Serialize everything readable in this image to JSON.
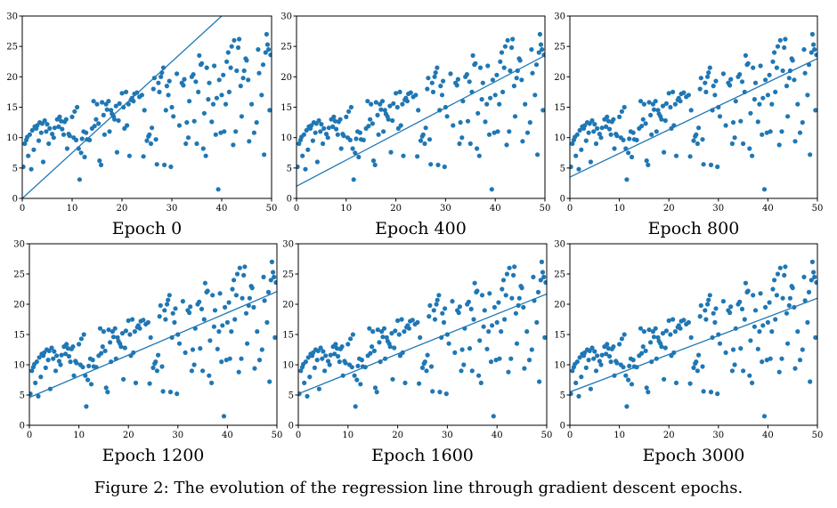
{
  "caption": "Figure 2: The evolution of the regression line through gradient descent epochs.",
  "chart_data": [
    {
      "type": "scatter",
      "title": "Epoch 0",
      "xlim": [
        0,
        50
      ],
      "ylim": [
        0,
        30
      ],
      "xticks": [
        0,
        10,
        20,
        30,
        40,
        50
      ],
      "yticks": [
        0,
        5,
        10,
        15,
        20,
        25,
        30
      ],
      "line": {
        "intercept": 0.0,
        "slope": 0.75
      }
    },
    {
      "type": "scatter",
      "title": "Epoch 400",
      "xlim": [
        0,
        50
      ],
      "ylim": [
        0,
        30
      ],
      "xticks": [
        0,
        10,
        20,
        30,
        40,
        50
      ],
      "yticks": [
        0,
        5,
        10,
        15,
        20,
        25,
        30
      ],
      "line": {
        "intercept": 2.0,
        "slope": 0.43
      }
    },
    {
      "type": "scatter",
      "title": "Epoch 800",
      "xlim": [
        0,
        50
      ],
      "ylim": [
        0,
        30
      ],
      "xticks": [
        0,
        10,
        20,
        30,
        40,
        50
      ],
      "yticks": [
        0,
        5,
        10,
        15,
        20,
        25,
        30
      ],
      "line": {
        "intercept": 3.5,
        "slope": 0.39
      }
    },
    {
      "type": "scatter",
      "title": "Epoch 1200",
      "xlim": [
        0,
        50
      ],
      "ylim": [
        0,
        30
      ],
      "xticks": [
        0,
        10,
        20,
        30,
        40,
        50
      ],
      "yticks": [
        0,
        5,
        10,
        15,
        20,
        25,
        30
      ],
      "line": {
        "intercept": 4.6,
        "slope": 0.35
      }
    },
    {
      "type": "scatter",
      "title": "Epoch 1600",
      "xlim": [
        0,
        50
      ],
      "ylim": [
        0,
        30
      ],
      "xticks": [
        0,
        10,
        20,
        30,
        40,
        50
      ],
      "yticks": [
        0,
        5,
        10,
        15,
        20,
        25,
        30
      ],
      "line": {
        "intercept": 5.2,
        "slope": 0.33
      }
    },
    {
      "type": "scatter",
      "title": "Epoch 3000",
      "xlim": [
        0,
        50
      ],
      "ylim": [
        0,
        30
      ],
      "xticks": [
        0,
        10,
        20,
        30,
        40,
        50
      ],
      "yticks": [
        0,
        5,
        10,
        15,
        20,
        25,
        30
      ],
      "line": {
        "intercept": 5.5,
        "slope": 0.31
      }
    }
  ],
  "scatter_points": [
    [
      0.2,
      5.2
    ],
    [
      0.5,
      9.0
    ],
    [
      0.8,
      9.6
    ],
    [
      1.0,
      10.1
    ],
    [
      1.2,
      7.0
    ],
    [
      1.5,
      10.5
    ],
    [
      1.8,
      4.8
    ],
    [
      2.0,
      11.2
    ],
    [
      2.3,
      8.0
    ],
    [
      2.5,
      11.8
    ],
    [
      2.8,
      11.5
    ],
    [
      3.0,
      12.0
    ],
    [
      3.3,
      9.5
    ],
    [
      3.5,
      12.5
    ],
    [
      3.8,
      10.8
    ],
    [
      4.0,
      12.3
    ],
    [
      4.2,
      6.0
    ],
    [
      4.5,
      12.8
    ],
    [
      4.8,
      11.0
    ],
    [
      5.0,
      12.2
    ],
    [
      5.3,
      9.0
    ],
    [
      5.5,
      11.5
    ],
    [
      6.0,
      10.6
    ],
    [
      6.3,
      10.0
    ],
    [
      6.5,
      11.6
    ],
    [
      7.0,
      13.0
    ],
    [
      7.3,
      11.8
    ],
    [
      7.5,
      13.4
    ],
    [
      7.8,
      12.7
    ],
    [
      8.0,
      11.4
    ],
    [
      8.3,
      10.5
    ],
    [
      8.5,
      12.6
    ],
    [
      8.8,
      13.0
    ],
    [
      9.0,
      8.2
    ],
    [
      9.3,
      10.6
    ],
    [
      9.5,
      10.3
    ],
    [
      10.0,
      13.4
    ],
    [
      10.3,
      10.0
    ],
    [
      10.5,
      14.3
    ],
    [
      10.8,
      9.6
    ],
    [
      11.0,
      15.0
    ],
    [
      11.3,
      8.2
    ],
    [
      11.5,
      3.1
    ],
    [
      11.8,
      7.5
    ],
    [
      12.0,
      9.8
    ],
    [
      12.3,
      11.0
    ],
    [
      12.5,
      6.8
    ],
    [
      12.8,
      10.8
    ],
    [
      13.0,
      9.7
    ],
    [
      13.5,
      9.6
    ],
    [
      14.0,
      11.5
    ],
    [
      14.3,
      16.0
    ],
    [
      14.5,
      11.9
    ],
    [
      14.8,
      13.0
    ],
    [
      15.0,
      15.5
    ],
    [
      15.3,
      12.3
    ],
    [
      15.5,
      6.2
    ],
    [
      15.8,
      5.5
    ],
    [
      16.0,
      15.8
    ],
    [
      16.3,
      13.7
    ],
    [
      16.5,
      10.5
    ],
    [
      16.8,
      15.5
    ],
    [
      17.0,
      14.6
    ],
    [
      17.3,
      16.0
    ],
    [
      17.5,
      11.0
    ],
    [
      17.8,
      14.5
    ],
    [
      18.0,
      13.9
    ],
    [
      18.3,
      13.5
    ],
    [
      18.5,
      13.0
    ],
    [
      18.8,
      15.2
    ],
    [
      19.0,
      7.6
    ],
    [
      19.3,
      12.8
    ],
    [
      19.5,
      15.6
    ],
    [
      20.0,
      17.3
    ],
    [
      20.3,
      15.0
    ],
    [
      20.5,
      11.5
    ],
    [
      20.8,
      17.5
    ],
    [
      21.0,
      12.0
    ],
    [
      21.3,
      15.5
    ],
    [
      21.5,
      7.0
    ],
    [
      21.8,
      16.2
    ],
    [
      22.0,
      16.5
    ],
    [
      22.3,
      16.0
    ],
    [
      22.5,
      17.2
    ],
    [
      23.0,
      17.4
    ],
    [
      23.5,
      16.7
    ],
    [
      24.0,
      17.0
    ],
    [
      24.3,
      6.9
    ],
    [
      24.5,
      14.5
    ],
    [
      25.0,
      9.5
    ],
    [
      25.3,
      10.2
    ],
    [
      25.5,
      10.5
    ],
    [
      25.8,
      9.0
    ],
    [
      26.0,
      11.6
    ],
    [
      26.3,
      18.0
    ],
    [
      26.5,
      19.8
    ],
    [
      26.8,
      9.7
    ],
    [
      27.0,
      5.6
    ],
    [
      27.3,
      19.0
    ],
    [
      27.5,
      17.5
    ],
    [
      27.8,
      20.0
    ],
    [
      28.0,
      20.7
    ],
    [
      28.3,
      21.5
    ],
    [
      28.5,
      5.5
    ],
    [
      28.8,
      14.5
    ],
    [
      29.0,
      18.5
    ],
    [
      29.3,
      17.0
    ],
    [
      29.5,
      19.3
    ],
    [
      29.8,
      5.2
    ],
    [
      30.0,
      15.0
    ],
    [
      30.3,
      13.5
    ],
    [
      31.0,
      20.5
    ],
    [
      31.5,
      12.0
    ],
    [
      32.0,
      19.0
    ],
    [
      32.3,
      18.6
    ],
    [
      32.5,
      19.6
    ],
    [
      32.8,
      9.0
    ],
    [
      33.0,
      12.5
    ],
    [
      33.3,
      10.0
    ],
    [
      33.5,
      16.0
    ],
    [
      34.0,
      20.0
    ],
    [
      34.3,
      20.4
    ],
    [
      34.5,
      12.7
    ],
    [
      34.8,
      19.2
    ],
    [
      35.0,
      9.0
    ],
    [
      35.3,
      17.5
    ],
    [
      35.5,
      23.5
    ],
    [
      35.8,
      22.0
    ],
    [
      36.0,
      22.2
    ],
    [
      36.3,
      8.2
    ],
    [
      36.5,
      14.0
    ],
    [
      36.8,
      7.0
    ],
    [
      37.0,
      21.5
    ],
    [
      37.3,
      16.3
    ],
    [
      37.5,
      19.0
    ],
    [
      38.0,
      12.6
    ],
    [
      38.3,
      15.5
    ],
    [
      38.5,
      21.8
    ],
    [
      38.8,
      10.5
    ],
    [
      39.0,
      16.5
    ],
    [
      39.3,
      1.5
    ],
    [
      39.5,
      19.5
    ],
    [
      39.8,
      10.8
    ],
    [
      40.0,
      17.0
    ],
    [
      40.3,
      20.3
    ],
    [
      40.5,
      11.0
    ],
    [
      40.8,
      15.5
    ],
    [
      41.0,
      22.5
    ],
    [
      41.3,
      24.0
    ],
    [
      41.5,
      17.5
    ],
    [
      41.8,
      21.5
    ],
    [
      42.0,
      25.0
    ],
    [
      42.3,
      8.8
    ],
    [
      42.5,
      26.0
    ],
    [
      42.8,
      11.0
    ],
    [
      43.0,
      21.0
    ],
    [
      43.3,
      24.8
    ],
    [
      43.5,
      26.2
    ],
    [
      43.8,
      18.5
    ],
    [
      44.0,
      13.5
    ],
    [
      44.3,
      19.8
    ],
    [
      44.5,
      21.0
    ],
    [
      44.8,
      23.0
    ],
    [
      45.0,
      22.7
    ],
    [
      45.3,
      19.5
    ],
    [
      45.5,
      9.4
    ],
    [
      46.0,
      15.5
    ],
    [
      46.5,
      10.8
    ],
    [
      47.0,
      12.5
    ],
    [
      47.3,
      24.5
    ],
    [
      47.5,
      20.6
    ],
    [
      48.0,
      17.0
    ],
    [
      48.3,
      22.0
    ],
    [
      48.5,
      7.2
    ],
    [
      48.8,
      24.0
    ],
    [
      49.0,
      27.0
    ],
    [
      49.2,
      25.3
    ],
    [
      49.4,
      24.5
    ],
    [
      49.6,
      14.5
    ],
    [
      49.8,
      23.6
    ]
  ]
}
